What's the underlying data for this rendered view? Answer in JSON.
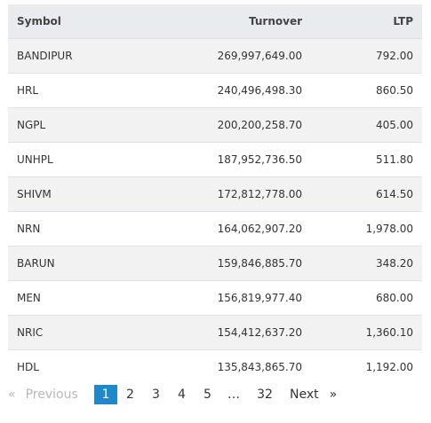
{
  "table": {
    "headers": [
      "Symbol",
      "Turnover",
      "LTP"
    ],
    "rows": [
      [
        "BANDIPUR",
        "269,997,649.00",
        "792.00"
      ],
      [
        "HRL",
        "240,496,498.30",
        "860.50"
      ],
      [
        "NGPL",
        "200,200,258.70",
        "405.00"
      ],
      [
        "UNHPL",
        "187,952,736.50",
        "511.80"
      ],
      [
        "SHIVM",
        "172,812,778.00",
        "614.50"
      ],
      [
        "NRN",
        "164,062,907.20",
        "1,978.00"
      ],
      [
        "BARUN",
        "159,846,885.70",
        "348.20"
      ],
      [
        "MEN",
        "156,819,977.40",
        "680.00"
      ],
      [
        "NRIC",
        "154,412,637.20",
        "1,360.10"
      ],
      [
        "HDL",
        "135,843,865.70",
        "1,192.00"
      ]
    ]
  },
  "pagination": {
    "prev_arrow": "«",
    "prev_label": "Previous",
    "pages": [
      "1",
      "2",
      "3",
      "4",
      "5"
    ],
    "current_page": "1",
    "ellipsis": "…",
    "last_page": "32",
    "next_label": "Next",
    "next_arrow": "»"
  }
}
